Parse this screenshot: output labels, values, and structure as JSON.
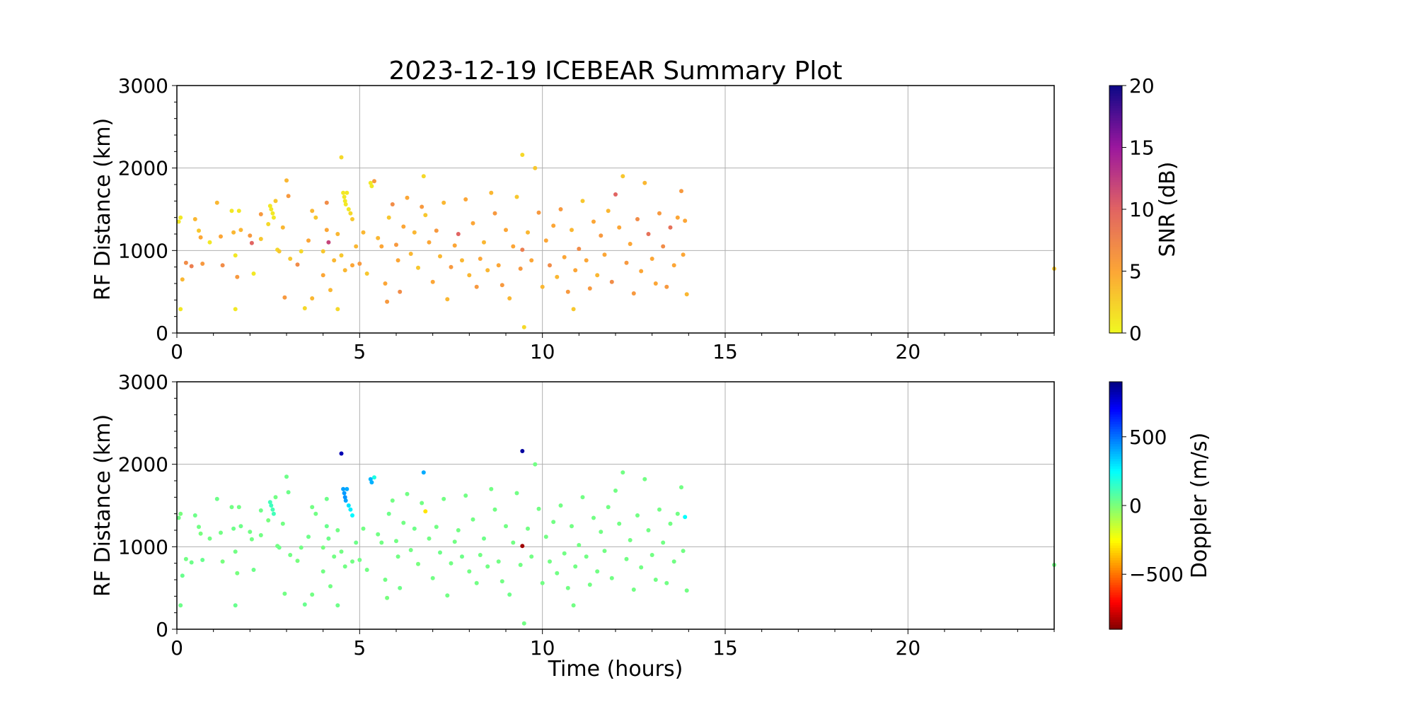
{
  "title": "2023-12-19 ICEBEAR Summary Plot",
  "chart_data": [
    {
      "type": "scatter",
      "panel": "top",
      "xlabel": "",
      "ylabel": "RF Distance (km)",
      "xlim": [
        0,
        24
      ],
      "ylim": [
        0,
        3000
      ],
      "xticks": [
        0,
        5,
        10,
        15,
        20
      ],
      "yticks": [
        0,
        1000,
        2000,
        3000
      ],
      "grid": true,
      "color_variable": "snr",
      "colorbar": {
        "label": "SNR (dB)",
        "colormap": "plasma_r",
        "range": [
          0,
          20
        ],
        "ticks": [
          0,
          5,
          10,
          15,
          20
        ]
      }
    },
    {
      "type": "scatter",
      "panel": "bottom",
      "xlabel": "Time (hours)",
      "ylabel": "RF Distance (km)",
      "xlim": [
        0,
        24
      ],
      "ylim": [
        0,
        3000
      ],
      "xticks": [
        0,
        5,
        10,
        15,
        20
      ],
      "yticks": [
        0,
        1000,
        2000,
        3000
      ],
      "grid": true,
      "color_variable": "doppler",
      "colorbar": {
        "label": "Doppler (m/s)",
        "colormap": "jet",
        "range": [
          -900,
          900
        ],
        "ticks": [
          -500,
          0,
          500
        ],
        "tick_labels": [
          "−500",
          "0",
          "500"
        ]
      }
    }
  ],
  "points_fields": [
    "time_hours",
    "rf_distance_km",
    "snr_db",
    "doppler_ms"
  ],
  "points": [
    [
      0.05,
      1350,
      1,
      20
    ],
    [
      0.1,
      1400,
      1,
      10
    ],
    [
      0.1,
      290,
      1,
      30
    ],
    [
      0.15,
      650,
      4,
      40
    ],
    [
      0.25,
      850,
      7,
      20
    ],
    [
      0.4,
      810,
      8,
      30
    ],
    [
      0.5,
      1380,
      4,
      30
    ],
    [
      0.6,
      1240,
      3,
      20
    ],
    [
      0.65,
      1160,
      5,
      10
    ],
    [
      0.7,
      840,
      6,
      40
    ],
    [
      0.9,
      1100,
      1,
      20
    ],
    [
      1.1,
      1580,
      4,
      30
    ],
    [
      1.2,
      1170,
      5,
      20
    ],
    [
      1.25,
      820,
      7,
      10
    ],
    [
      1.5,
      1480,
      1,
      20
    ],
    [
      1.55,
      1220,
      4,
      30
    ],
    [
      1.6,
      940,
      1,
      20
    ],
    [
      1.6,
      290,
      1,
      40
    ],
    [
      1.65,
      680,
      6,
      10
    ],
    [
      1.7,
      1480,
      1,
      20
    ],
    [
      1.75,
      1250,
      4,
      30
    ],
    [
      2.0,
      1180,
      6,
      20
    ],
    [
      2.05,
      1090,
      10,
      20
    ],
    [
      2.1,
      720,
      1,
      30
    ],
    [
      2.3,
      1140,
      3,
      20
    ],
    [
      2.3,
      1440,
      6,
      30
    ],
    [
      2.55,
      1540,
      1,
      120
    ],
    [
      2.58,
      1500,
      1,
      130
    ],
    [
      2.62,
      1450,
      1,
      110
    ],
    [
      2.65,
      1400,
      1,
      120
    ],
    [
      2.5,
      1320,
      2,
      10
    ],
    [
      2.7,
      1600,
      3,
      20
    ],
    [
      2.75,
      1010,
      2,
      20
    ],
    [
      2.8,
      990,
      3,
      30
    ],
    [
      2.9,
      1280,
      4,
      20
    ],
    [
      2.95,
      430,
      6,
      20
    ],
    [
      3.0,
      1850,
      4,
      30
    ],
    [
      3.05,
      1660,
      6,
      30
    ],
    [
      3.1,
      900,
      3,
      20
    ],
    [
      3.3,
      830,
      7,
      10
    ],
    [
      3.4,
      990,
      2,
      20
    ],
    [
      3.5,
      300,
      2,
      40
    ],
    [
      3.6,
      1120,
      5,
      30
    ],
    [
      3.7,
      1480,
      4,
      20
    ],
    [
      3.7,
      420,
      4,
      20
    ],
    [
      3.8,
      1400,
      3,
      20
    ],
    [
      4.0,
      990,
      3,
      10
    ],
    [
      4.0,
      700,
      5,
      20
    ],
    [
      4.1,
      1580,
      7,
      30
    ],
    [
      4.1,
      1250,
      5,
      40
    ],
    [
      4.15,
      1100,
      12,
      30
    ],
    [
      4.2,
      520,
      4,
      20
    ],
    [
      4.3,
      880,
      4,
      20
    ],
    [
      4.4,
      290,
      2,
      30
    ],
    [
      4.5,
      2130,
      2,
      820
    ],
    [
      4.55,
      1700,
      1,
      420
    ],
    [
      4.58,
      1650,
      1,
      430
    ],
    [
      4.6,
      1600,
      1,
      440
    ],
    [
      4.62,
      1560,
      1,
      410
    ],
    [
      4.65,
      1700,
      1,
      400
    ],
    [
      4.7,
      1500,
      1,
      300
    ],
    [
      4.75,
      1450,
      2,
      280
    ],
    [
      4.8,
      1380,
      3,
      260
    ],
    [
      4.4,
      1200,
      4,
      20
    ],
    [
      4.5,
      940,
      3,
      20
    ],
    [
      4.6,
      760,
      4,
      20
    ],
    [
      4.8,
      820,
      5,
      20
    ],
    [
      4.9,
      1050,
      4,
      30
    ],
    [
      5.0,
      840,
      6,
      20
    ],
    [
      5.1,
      1220,
      4,
      20
    ],
    [
      5.2,
      720,
      3,
      20
    ],
    [
      5.3,
      1820,
      1,
      380
    ],
    [
      5.33,
      1780,
      1,
      390
    ],
    [
      5.4,
      1840,
      6,
      200
    ],
    [
      5.5,
      1150,
      4,
      20
    ],
    [
      5.6,
      1050,
      5,
      20
    ],
    [
      5.7,
      600,
      5,
      20
    ],
    [
      5.75,
      380,
      6,
      10
    ],
    [
      5.8,
      1400,
      3,
      30
    ],
    [
      5.9,
      1560,
      7,
      20
    ],
    [
      6.0,
      1070,
      6,
      20
    ],
    [
      6.05,
      880,
      5,
      20
    ],
    [
      6.1,
      500,
      7,
      30
    ],
    [
      6.2,
      1290,
      5,
      20
    ],
    [
      6.3,
      1640,
      5,
      20
    ],
    [
      6.4,
      960,
      4,
      20
    ],
    [
      6.5,
      1220,
      4,
      30
    ],
    [
      6.6,
      790,
      3,
      10
    ],
    [
      6.7,
      1530,
      6,
      20
    ],
    [
      6.75,
      1900,
      2,
      400
    ],
    [
      6.8,
      1430,
      3,
      -300
    ],
    [
      6.9,
      1100,
      5,
      20
    ],
    [
      7.0,
      620,
      5,
      20
    ],
    [
      7.1,
      1240,
      6,
      20
    ],
    [
      7.2,
      930,
      4,
      30
    ],
    [
      7.3,
      1580,
      4,
      20
    ],
    [
      7.4,
      410,
      4,
      20
    ],
    [
      7.5,
      800,
      6,
      20
    ],
    [
      7.6,
      1060,
      5,
      20
    ],
    [
      7.7,
      1200,
      10,
      20
    ],
    [
      7.8,
      880,
      4,
      30
    ],
    [
      7.9,
      1620,
      5,
      20
    ],
    [
      8.0,
      700,
      4,
      20
    ],
    [
      8.1,
      1330,
      5,
      20
    ],
    [
      8.2,
      560,
      6,
      20
    ],
    [
      8.3,
      900,
      5,
      20
    ],
    [
      8.4,
      1100,
      4,
      30
    ],
    [
      8.5,
      760,
      4,
      20
    ],
    [
      8.6,
      1700,
      4,
      20
    ],
    [
      8.7,
      1450,
      6,
      20
    ],
    [
      8.8,
      820,
      5,
      20
    ],
    [
      8.9,
      580,
      6,
      20
    ],
    [
      9.0,
      1250,
      5,
      20
    ],
    [
      9.1,
      420,
      4,
      30
    ],
    [
      9.2,
      1050,
      5,
      20
    ],
    [
      9.3,
      1650,
      3,
      20
    ],
    [
      9.4,
      780,
      6,
      20
    ],
    [
      9.45,
      2160,
      2,
      850
    ],
    [
      9.45,
      1010,
      8,
      -850
    ],
    [
      9.5,
      70,
      2,
      20
    ],
    [
      9.6,
      1220,
      4,
      20
    ],
    [
      9.7,
      880,
      5,
      20
    ],
    [
      9.8,
      2000,
      3,
      20
    ],
    [
      9.9,
      1460,
      6,
      20
    ],
    [
      10.0,
      560,
      4,
      20
    ],
    [
      10.1,
      1120,
      5,
      20
    ],
    [
      10.2,
      820,
      7,
      20
    ],
    [
      10.3,
      1300,
      5,
      20
    ],
    [
      10.4,
      680,
      4,
      20
    ],
    [
      10.5,
      1500,
      6,
      20
    ],
    [
      10.6,
      920,
      5,
      20
    ],
    [
      10.7,
      500,
      6,
      20
    ],
    [
      10.8,
      1250,
      4,
      20
    ],
    [
      10.85,
      290,
      3,
      20
    ],
    [
      10.9,
      760,
      5,
      20
    ],
    [
      11.0,
      1020,
      7,
      20
    ],
    [
      11.1,
      1600,
      3,
      20
    ],
    [
      11.2,
      880,
      5,
      20
    ],
    [
      11.3,
      540,
      6,
      20
    ],
    [
      11.4,
      1350,
      5,
      20
    ],
    [
      11.5,
      700,
      4,
      20
    ],
    [
      11.6,
      1180,
      6,
      20
    ],
    [
      11.7,
      950,
      5,
      20
    ],
    [
      11.8,
      1480,
      4,
      20
    ],
    [
      11.9,
      620,
      7,
      20
    ],
    [
      12.0,
      1680,
      10,
      20
    ],
    [
      12.1,
      1280,
      5,
      20
    ],
    [
      12.2,
      1900,
      3,
      20
    ],
    [
      12.3,
      850,
      6,
      20
    ],
    [
      12.4,
      1080,
      5,
      20
    ],
    [
      12.5,
      480,
      6,
      20
    ],
    [
      12.6,
      1380,
      7,
      20
    ],
    [
      12.7,
      750,
      5,
      20
    ],
    [
      12.8,
      1820,
      4,
      20
    ],
    [
      12.9,
      1200,
      9,
      20
    ],
    [
      13.0,
      900,
      5,
      20
    ],
    [
      13.1,
      600,
      5,
      20
    ],
    [
      13.2,
      1450,
      6,
      20
    ],
    [
      13.3,
      1050,
      7,
      20
    ],
    [
      13.4,
      560,
      6,
      20
    ],
    [
      13.5,
      1280,
      9,
      20
    ],
    [
      13.6,
      820,
      5,
      20
    ],
    [
      13.7,
      1400,
      5,
      20
    ],
    [
      13.8,
      1720,
      6,
      20
    ],
    [
      13.85,
      950,
      5,
      20
    ],
    [
      13.9,
      1360,
      5,
      250
    ],
    [
      13.95,
      470,
      4,
      20
    ],
    [
      24.0,
      780,
      3,
      20
    ]
  ]
}
